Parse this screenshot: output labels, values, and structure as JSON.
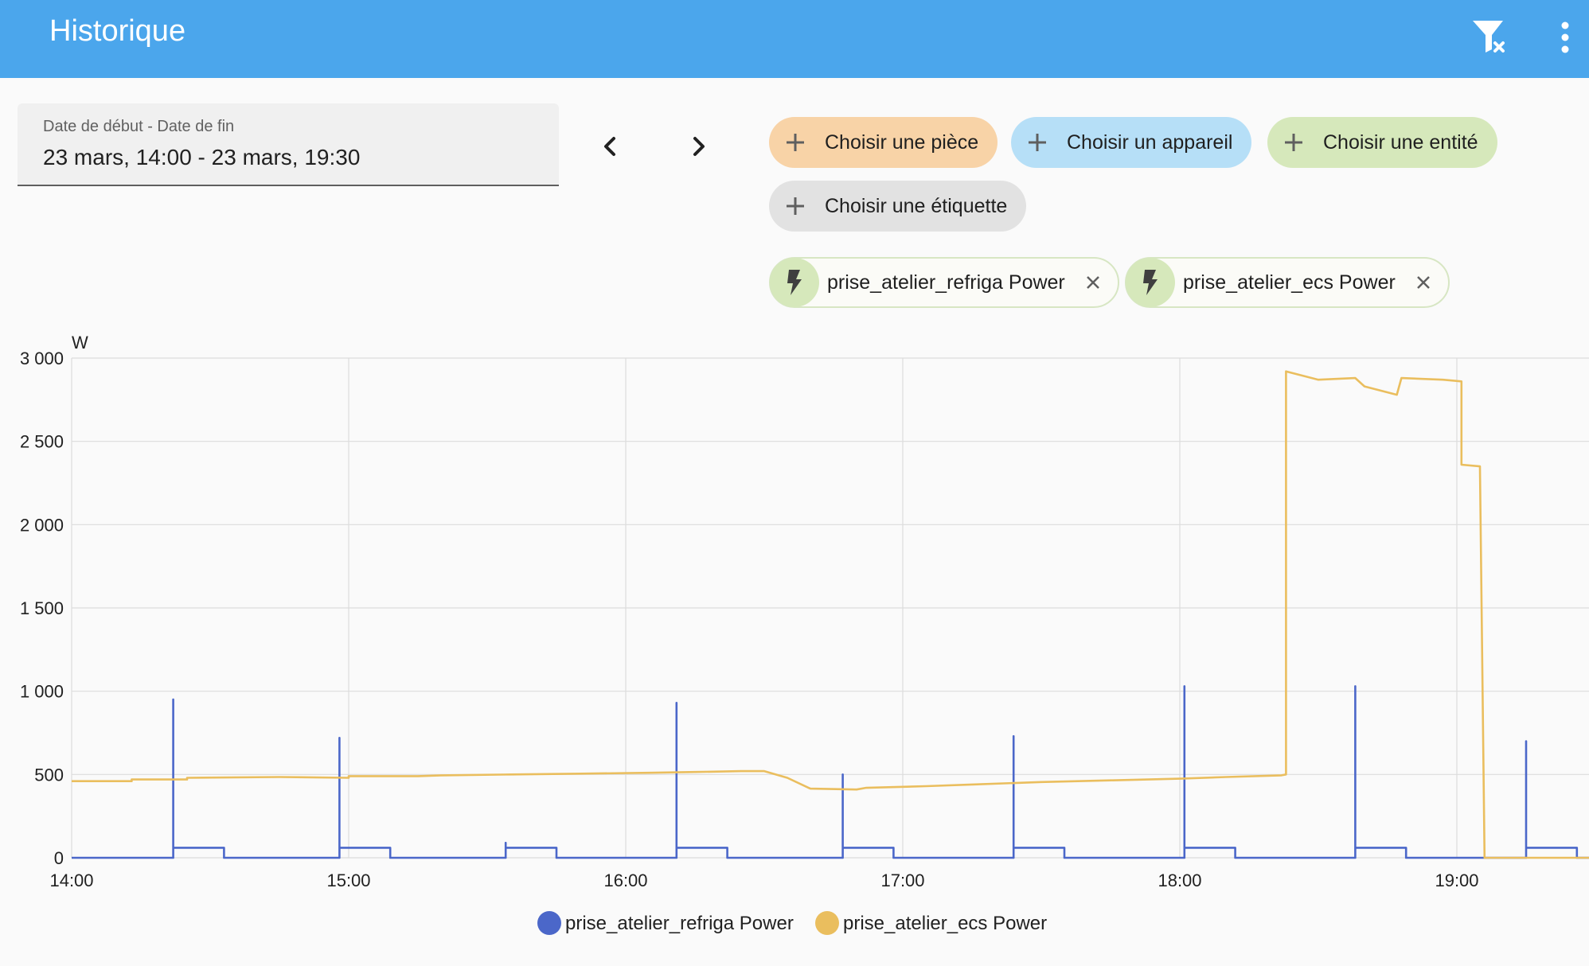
{
  "header": {
    "title": "Historique",
    "actions": [
      {
        "icon": "filter-remove-icon"
      },
      {
        "icon": "more-vertical-icon"
      }
    ]
  },
  "date_range": {
    "label": "Date de début - Date de fin",
    "value": "23 mars, 14:00 - 23 mars, 19:30"
  },
  "nav": {
    "prev_icon": "chevron-left-icon",
    "next_icon": "chevron-right-icon"
  },
  "pickers": {
    "area": "Choisir une pièce",
    "device": "Choisir un appareil",
    "entity": "Choisir une entité",
    "label": "Choisir une étiquette"
  },
  "selected": [
    {
      "name": "prise_atelier_refriga Power",
      "icon": "flash-icon"
    },
    {
      "name": "prise_atelier_ecs Power",
      "icon": "flash-icon"
    }
  ],
  "colors": {
    "header": "#4ba6ec",
    "refriga": "#4b67c9",
    "ecs": "#eabe5e"
  },
  "chart_data": {
    "type": "line",
    "unit": "W",
    "x_ticks": [
      "14:00",
      "15:00",
      "16:00",
      "17:00",
      "18:00",
      "19:00"
    ],
    "xlim": [
      "14:00",
      "19:30"
    ],
    "ylim": [
      0,
      3000
    ],
    "y_ticks": [
      "0",
      "500",
      "1 000",
      "1 500",
      "2 000",
      "2 500",
      "3 000"
    ],
    "grid": true,
    "legend": "bottom",
    "series": [
      {
        "name": "prise_atelier_refriga Power",
        "color": "#4b67c9",
        "points": [
          [
            "14:00",
            0
          ],
          [
            "14:22",
            0
          ],
          [
            "14:22",
            950
          ],
          [
            "14:22",
            60
          ],
          [
            "14:33",
            60
          ],
          [
            "14:33",
            0
          ],
          [
            "14:58",
            0
          ],
          [
            "14:58",
            720
          ],
          [
            "14:58",
            60
          ],
          [
            "15:09",
            60
          ],
          [
            "15:09",
            0
          ],
          [
            "15:34",
            0
          ],
          [
            "15:34",
            90
          ],
          [
            "15:34",
            60
          ],
          [
            "15:45",
            60
          ],
          [
            "15:45",
            0
          ],
          [
            "16:11",
            0
          ],
          [
            "16:11",
            930
          ],
          [
            "16:11",
            60
          ],
          [
            "16:22",
            60
          ],
          [
            "16:22",
            0
          ],
          [
            "16:47",
            0
          ],
          [
            "16:47",
            500
          ],
          [
            "16:47",
            60
          ],
          [
            "16:58",
            60
          ],
          [
            "16:58",
            0
          ],
          [
            "17:24",
            0
          ],
          [
            "17:24",
            730
          ],
          [
            "17:24",
            60
          ],
          [
            "17:35",
            60
          ],
          [
            "17:35",
            0
          ],
          [
            "18:01",
            0
          ],
          [
            "18:01",
            1030
          ],
          [
            "18:01",
            60
          ],
          [
            "18:12",
            60
          ],
          [
            "18:12",
            0
          ],
          [
            "18:38",
            0
          ],
          [
            "18:38",
            1030
          ],
          [
            "18:38",
            60
          ],
          [
            "18:49",
            60
          ],
          [
            "18:49",
            0
          ],
          [
            "19:15",
            0
          ],
          [
            "19:15",
            700
          ],
          [
            "19:15",
            60
          ],
          [
            "19:26",
            60
          ],
          [
            "19:26",
            0
          ],
          [
            "19:30",
            0
          ]
        ]
      },
      {
        "name": "prise_atelier_ecs Power",
        "color": "#eabe5e",
        "points": [
          [
            "14:00",
            460
          ],
          [
            "14:13",
            460
          ],
          [
            "14:13",
            470
          ],
          [
            "14:25",
            470
          ],
          [
            "14:25",
            480
          ],
          [
            "14:45",
            485
          ],
          [
            "15:00",
            480
          ],
          [
            "15:00",
            490
          ],
          [
            "15:15",
            490
          ],
          [
            "15:20",
            495
          ],
          [
            "15:35",
            500
          ],
          [
            "15:50",
            505
          ],
          [
            "16:05",
            510
          ],
          [
            "16:15",
            515
          ],
          [
            "16:25",
            520
          ],
          [
            "16:30",
            520
          ],
          [
            "16:35",
            480
          ],
          [
            "16:40",
            415
          ],
          [
            "16:50",
            410
          ],
          [
            "16:52",
            420
          ],
          [
            "17:05",
            430
          ],
          [
            "17:15",
            440
          ],
          [
            "17:30",
            455
          ],
          [
            "17:45",
            465
          ],
          [
            "18:00",
            475
          ],
          [
            "18:10",
            485
          ],
          [
            "18:22",
            495
          ],
          [
            "18:23",
            500
          ],
          [
            "18:23",
            2920
          ],
          [
            "18:30",
            2870
          ],
          [
            "18:38",
            2880
          ],
          [
            "18:40",
            2830
          ],
          [
            "18:47",
            2780
          ],
          [
            "18:48",
            2880
          ],
          [
            "18:57",
            2870
          ],
          [
            "19:01",
            2860
          ],
          [
            "19:01",
            2360
          ],
          [
            "19:05",
            2350
          ],
          [
            "19:06",
            0
          ],
          [
            "19:30",
            0
          ]
        ]
      }
    ]
  }
}
